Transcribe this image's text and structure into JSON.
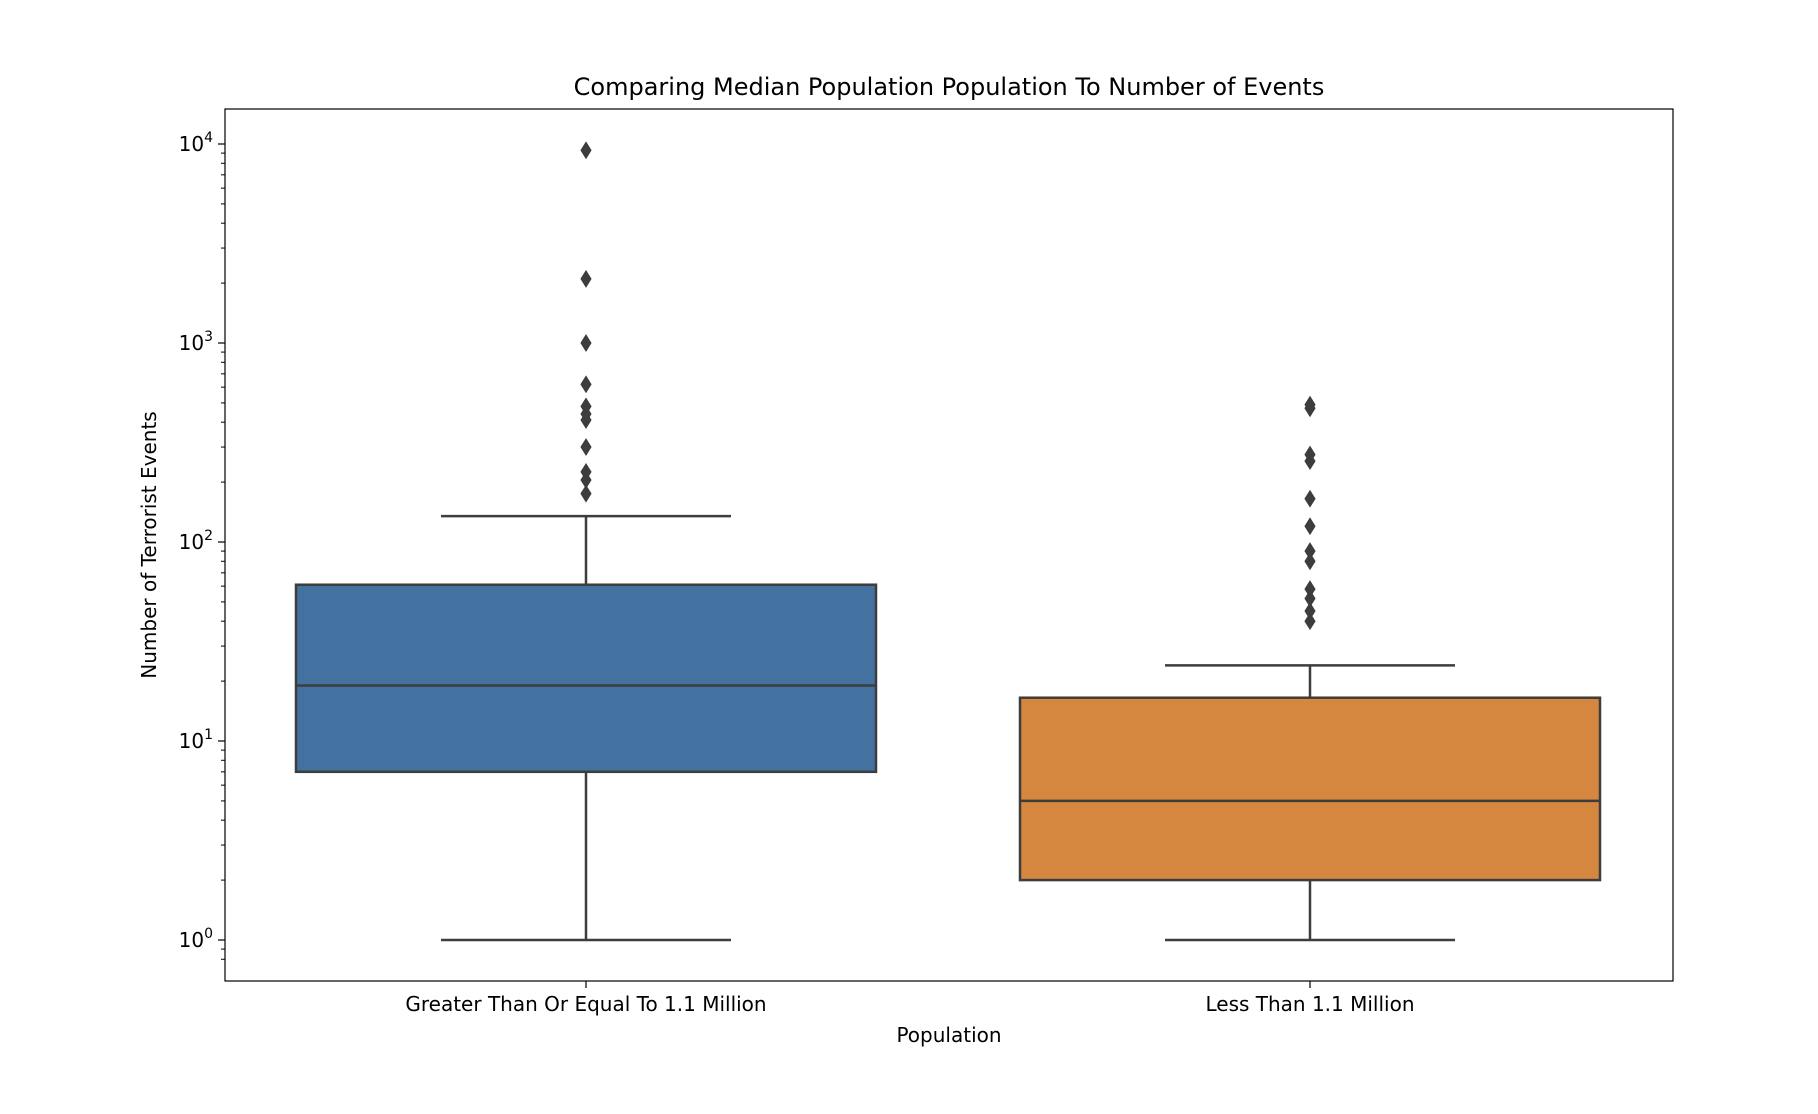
{
  "chart_data": {
    "type": "boxplot",
    "title": "Comparing Median Population Population To Number of Events",
    "xlabel": "Population",
    "ylabel": "Number of Terrorist Events",
    "y_scale": "log",
    "ylim": [
      0.8,
      12000
    ],
    "y_ticks": [
      {
        "value": 1,
        "base": "10",
        "exp": "0"
      },
      {
        "value": 10,
        "base": "10",
        "exp": "1"
      },
      {
        "value": 100,
        "base": "10",
        "exp": "2"
      },
      {
        "value": 1000,
        "base": "10",
        "exp": "3"
      },
      {
        "value": 10000,
        "base": "10",
        "exp": "4"
      }
    ],
    "grid": false,
    "legend": "none",
    "boxes": [
      {
        "category": "Greater Than Or Equal To 1.1 Million",
        "color": "#4472a0",
        "whisker_low": 1,
        "q1": 7,
        "median": 19,
        "q3": 61,
        "whisker_high": 135,
        "outliers": [
          175,
          205,
          225,
          300,
          410,
          440,
          480,
          620,
          1000,
          2100,
          9300
        ]
      },
      {
        "category": "Less Than 1.1 Million",
        "color": "#d5863f",
        "whisker_low": 1,
        "q1": 2,
        "median": 5,
        "q3": 16.5,
        "whisker_high": 24,
        "outliers": [
          40,
          45,
          52,
          58,
          80,
          90,
          120,
          165,
          255,
          275,
          470,
          490
        ]
      }
    ]
  }
}
